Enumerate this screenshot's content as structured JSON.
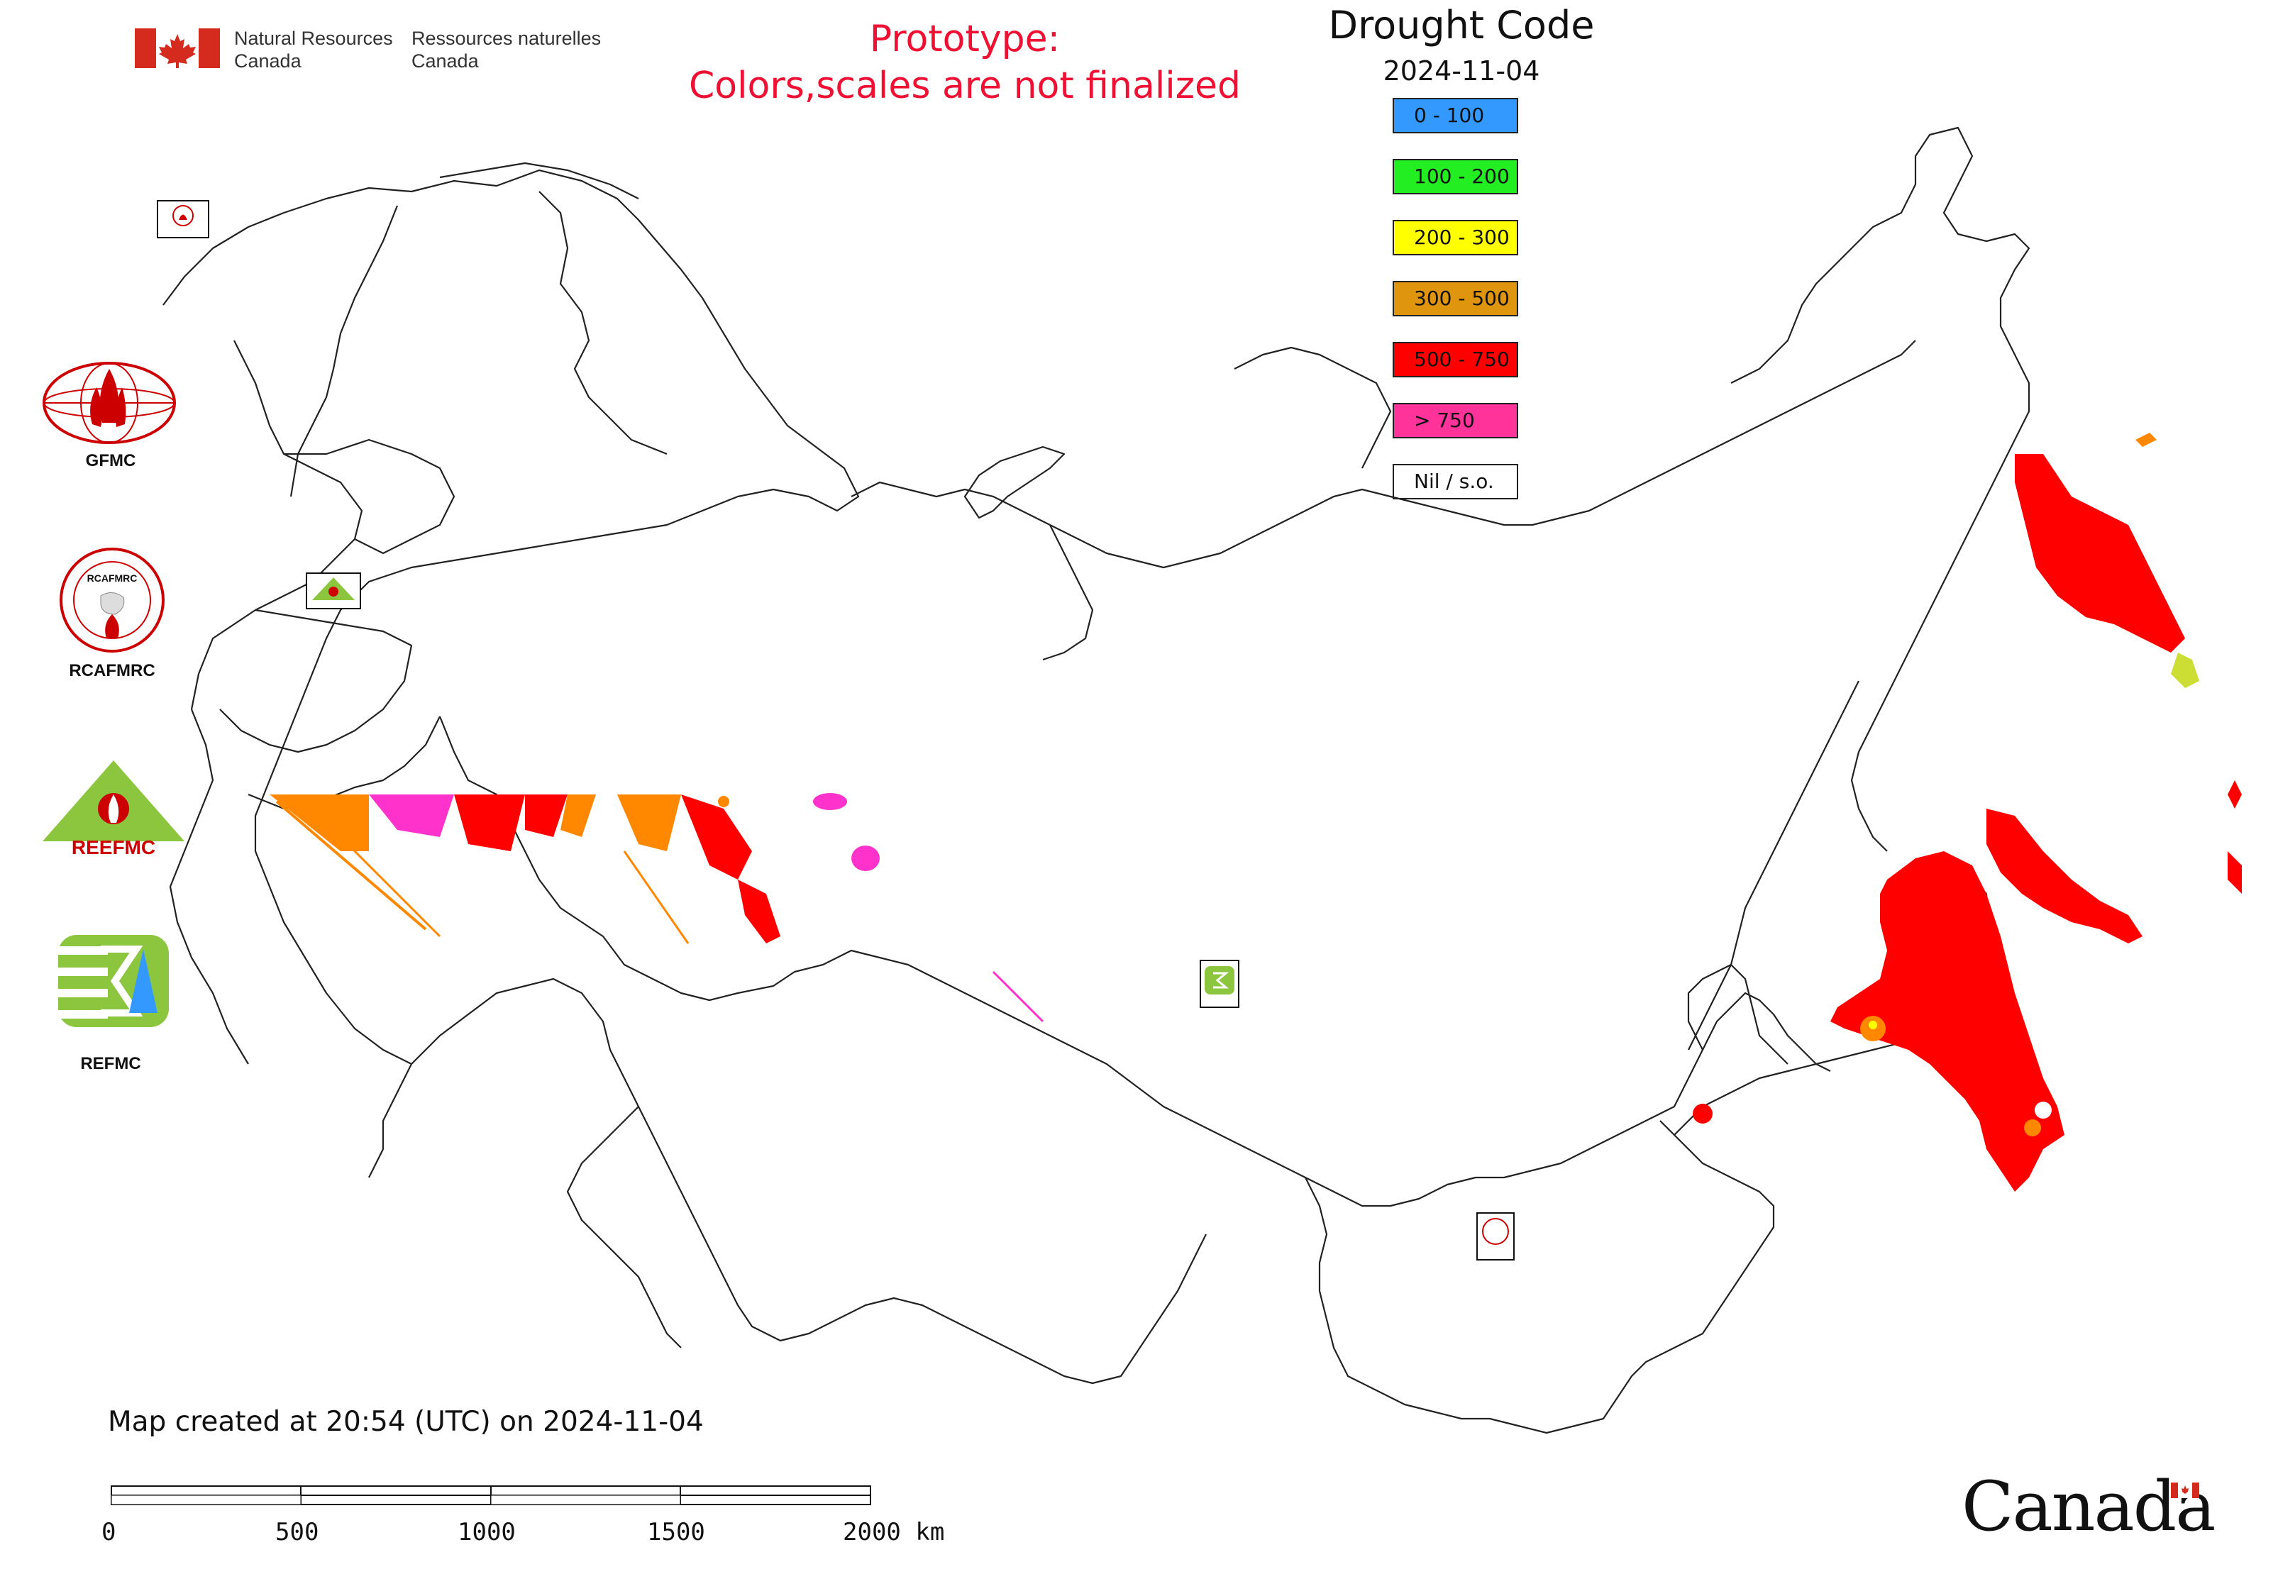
{
  "header": {
    "gov_name_en": "Natural Resources\nCanada",
    "gov_name_fr": "Ressources naturelles\nCanada",
    "prototype_line1": "Prototype:",
    "prototype_line2": "Colors,scales are not finalized"
  },
  "legend": {
    "title": "Drought Code",
    "date": "2024-11-04",
    "items": [
      {
        "label": "0 - 100",
        "color": "#3399ff"
      },
      {
        "label": "100 - 200",
        "color": "#22ee22"
      },
      {
        "label": "200 - 300",
        "color": "#ffff00"
      },
      {
        "label": "300 - 500",
        "color": "#e0950e"
      },
      {
        "label": "500 - 750",
        "color": "#ff0000"
      },
      {
        "label": "> 750",
        "color": "#ff3399"
      },
      {
        "label": "Nil / s.o.",
        "color": "#ffffff"
      }
    ]
  },
  "agencies": [
    {
      "label": "GFMC",
      "icon": "gfmc-logo-icon"
    },
    {
      "label": "RCAFMRC",
      "icon": "rcafmrc-logo-icon"
    },
    {
      "label": "REEFMC",
      "icon": "reefmc-logo-icon"
    },
    {
      "label": "REFMC",
      "icon": "refmc-logo-icon"
    }
  ],
  "footer": {
    "map_created": "Map created at 20:54 (UTC) on 2024-11-04",
    "scale_labels": [
      "0",
      "500",
      "1000",
      "1500",
      "2000 km"
    ],
    "wordmark": "Canada"
  },
  "colors": {
    "proto_text": "#ee1133",
    "boundary": "#222222",
    "flag_red": "#d52b1e"
  }
}
